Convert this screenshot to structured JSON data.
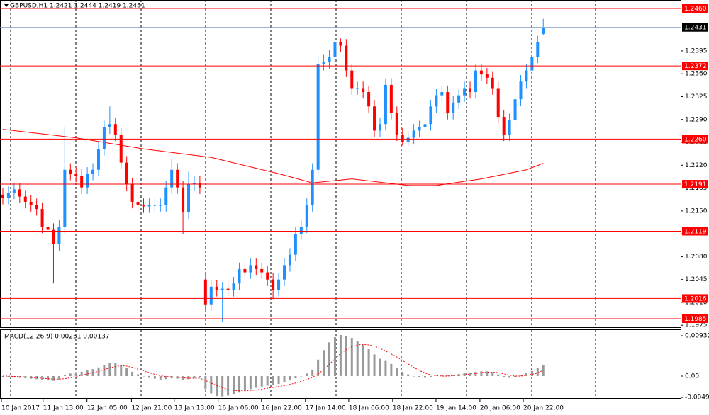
{
  "chart_data": {
    "type": "candlestick",
    "title": "GBPUSD,H1  1.2421 1.2444 1.2419 1.2431",
    "open": [
      1.2175,
      1.217,
      1.2178,
      1.2183,
      1.2172,
      1.2164,
      1.2159,
      1.2153,
      1.2126,
      1.2121,
      1.2099,
      1.2126,
      1.2213,
      1.2207,
      1.2204,
      1.2186,
      1.2207,
      1.2213,
      1.2245,
      1.2278,
      1.2283,
      1.2267,
      1.2224,
      1.2191,
      1.2164,
      1.2159,
      1.2157,
      1.2159,
      1.2159,
      1.2159,
      1.2186,
      1.2213,
      1.2186,
      1.2148,
      1.2191,
      1.2193,
      1.2045,
      1.2007,
      1.2034,
      1.2029,
      1.2031,
      1.2029,
      1.2039,
      1.2061,
      1.2056,
      1.2067,
      1.2061,
      1.2056,
      1.2045,
      1.2029,
      1.2045,
      1.2067,
      1.2083,
      1.2115,
      1.2126,
      1.2159,
      1.2213,
      1.2375,
      1.2378,
      1.2386,
      1.2408,
      1.2403,
      1.2365,
      1.2338,
      1.2338,
      1.2332,
      1.231,
      1.2273,
      1.2283,
      1.2343,
      1.23,
      1.2267,
      1.2256,
      1.2262,
      1.2273,
      1.2278,
      1.2283,
      1.231,
      1.2327,
      1.2332,
      1.23,
      1.2316,
      1.2327,
      1.2338,
      1.2332,
      1.2365,
      1.2359,
      1.2354,
      1.2338,
      1.2294,
      1.2267,
      1.2289,
      1.2321,
      1.2348,
      1.2365,
      1.2386,
      1.2421
    ],
    "high": [
      1.2185,
      1.2188,
      1.2193,
      1.2193,
      1.2182,
      1.2174,
      1.2169,
      1.2163,
      1.2136,
      1.2131,
      1.2136,
      1.2278,
      1.2223,
      1.2217,
      1.2214,
      1.2217,
      1.2223,
      1.2255,
      1.2288,
      1.231,
      1.2293,
      1.2277,
      1.2234,
      1.2201,
      1.2174,
      1.2169,
      1.2169,
      1.2169,
      1.2169,
      1.2196,
      1.223,
      1.2223,
      1.2196,
      1.221,
      1.2203,
      1.2203,
      1.2055,
      1.2044,
      1.2044,
      1.2041,
      1.2041,
      1.2049,
      1.2071,
      1.2071,
      1.2077,
      1.2077,
      1.2071,
      1.2066,
      1.2055,
      1.2055,
      1.2077,
      1.2093,
      1.2125,
      1.2136,
      1.2169,
      1.2223,
      1.2385,
      1.239,
      1.2396,
      1.2414,
      1.2414,
      1.2413,
      1.2375,
      1.2348,
      1.2348,
      1.2342,
      1.232,
      1.2293,
      1.2353,
      1.2353,
      1.231,
      1.2277,
      1.2272,
      1.2283,
      1.2288,
      1.2293,
      1.232,
      1.2337,
      1.2342,
      1.2342,
      1.2326,
      1.2337,
      1.2348,
      1.2348,
      1.2375,
      1.2375,
      1.2369,
      1.2364,
      1.2348,
      1.2304,
      1.2299,
      1.2331,
      1.2358,
      1.2375,
      1.2396,
      1.2418,
      1.2444
    ],
    "low": [
      1.216,
      1.216,
      1.2168,
      1.2162,
      1.2154,
      1.2149,
      1.2143,
      1.2116,
      1.2111,
      1.2039,
      1.2089,
      1.2116,
      1.2197,
      1.2194,
      1.2176,
      1.2176,
      1.2197,
      1.2203,
      1.2235,
      1.2268,
      1.2257,
      1.2214,
      1.2181,
      1.2154,
      1.2149,
      1.2147,
      1.2147,
      1.2149,
      1.2149,
      1.2149,
      1.2176,
      1.2176,
      1.2115,
      1.2138,
      1.2181,
      1.2176,
      1.1995,
      1.1997,
      1.2019,
      1.198,
      1.2019,
      1.2019,
      1.2029,
      1.2046,
      1.2046,
      1.2051,
      1.2046,
      1.2035,
      1.2015,
      1.2019,
      1.2035,
      1.2057,
      1.2073,
      1.2105,
      1.2116,
      1.2149,
      1.2203,
      1.2365,
      1.2368,
      1.2376,
      1.2393,
      1.2355,
      1.2328,
      1.2328,
      1.2322,
      1.23,
      1.2263,
      1.2263,
      1.2273,
      1.229,
      1.2257,
      1.225,
      1.225,
      1.2252,
      1.2263,
      1.226,
      1.2273,
      1.23,
      1.2317,
      1.229,
      1.229,
      1.2306,
      1.2317,
      1.2322,
      1.2322,
      1.2349,
      1.2344,
      1.2328,
      1.2284,
      1.2257,
      1.2257,
      1.2279,
      1.2311,
      1.2338,
      1.2355,
      1.2376,
      1.2419
    ],
    "close": [
      1.217,
      1.2178,
      1.2183,
      1.2172,
      1.2164,
      1.2159,
      1.2153,
      1.2126,
      1.2121,
      1.2099,
      1.2126,
      1.2213,
      1.2207,
      1.2204,
      1.2186,
      1.2207,
      1.2213,
      1.2245,
      1.2278,
      1.2283,
      1.2267,
      1.2224,
      1.2191,
      1.2164,
      1.2159,
      1.2157,
      1.2159,
      1.2159,
      1.2159,
      1.2186,
      1.2213,
      1.2186,
      1.2148,
      1.2191,
      1.2193,
      1.2186,
      1.2007,
      1.2034,
      1.2029,
      1.2031,
      1.2029,
      1.2039,
      1.2061,
      1.2056,
      1.2067,
      1.2061,
      1.2056,
      1.2045,
      1.2029,
      1.2045,
      1.2067,
      1.2083,
      1.2115,
      1.2126,
      1.2159,
      1.2213,
      1.2375,
      1.2378,
      1.2386,
      1.2408,
      1.2403,
      1.2365,
      1.2338,
      1.2338,
      1.2332,
      1.231,
      1.2273,
      1.2283,
      1.2343,
      1.23,
      1.2267,
      1.2256,
      1.2262,
      1.2273,
      1.2278,
      1.2283,
      1.231,
      1.2327,
      1.2332,
      1.23,
      1.2316,
      1.2327,
      1.2338,
      1.2332,
      1.2365,
      1.2359,
      1.2354,
      1.2338,
      1.2294,
      1.2267,
      1.2289,
      1.2321,
      1.2348,
      1.2365,
      1.2386,
      1.2408,
      1.2431
    ],
    "up_color": "#1e90ff",
    "down_color": "#ff0000",
    "ma": {
      "color": "#ff0000",
      "x": [
        0,
        13,
        25,
        37,
        49,
        55,
        62,
        72,
        77,
        85,
        93,
        96
      ],
      "values": [
        1.2275,
        1.2262,
        1.2245,
        1.2232,
        1.2207,
        1.2193,
        1.2199,
        1.2189,
        1.2189,
        1.2199,
        1.2213,
        1.2223
      ]
    },
    "ylim": [
      1.1972,
      1.2473
    ],
    "yticks": [
      {
        "value": 1.2395,
        "label": "1.2395"
      },
      {
        "value": 1.236,
        "label": "1.2360"
      },
      {
        "value": 1.2325,
        "label": "1.2325"
      },
      {
        "value": 1.229,
        "label": "1.2290"
      },
      {
        "value": 1.2255,
        "label": "1.2255"
      },
      {
        "value": 1.222,
        "label": "1.2220"
      },
      {
        "value": 1.2185,
        "label": "1.2185"
      },
      {
        "value": 1.215,
        "label": "1.2150"
      },
      {
        "value": 1.2115,
        "label": "1.2115"
      },
      {
        "value": 1.208,
        "label": "1.2080"
      },
      {
        "value": 1.2045,
        "label": "1.2045"
      },
      {
        "value": 1.201,
        "label": "1.2010"
      },
      {
        "value": 1.1975,
        "label": "1.1975"
      }
    ],
    "levels": {
      "color": "#ff0000",
      "values": [
        {
          "value": 1.246,
          "label": "1.2460"
        },
        {
          "value": 1.2372,
          "label": "1.2372"
        },
        {
          "value": 1.226,
          "label": "1.2260"
        },
        {
          "value": 1.2191,
          "label": "1.2191"
        },
        {
          "value": 1.2119,
          "label": "1.2119"
        },
        {
          "value": 1.2016,
          "label": "1.2016"
        },
        {
          "value": 1.1985,
          "label": "1.1985"
        }
      ]
    },
    "current_price": {
      "value": 1.2431,
      "label": "1.2431"
    },
    "xticks": [
      {
        "value": 0,
        "label": "10 Jan 2017"
      },
      {
        "value": 7.4,
        "label": "11 Jan 13:00"
      },
      {
        "value": 15.2,
        "label": "12 Jan 05:00"
      },
      {
        "value": 23.1,
        "label": "12 Jan 21:00"
      },
      {
        "value": 30.7,
        "label": "13 Jan 13:00"
      },
      {
        "value": 38.5,
        "label": "16 Jan 06:00"
      },
      {
        "value": 46.2,
        "label": "16 Jan 22:00"
      },
      {
        "value": 54,
        "label": "17 Jan 14:00"
      },
      {
        "value": 61.7,
        "label": "18 Jan 06:00"
      },
      {
        "value": 69.5,
        "label": "18 Jan 22:00"
      },
      {
        "value": 77.2,
        "label": "19 Jan 14:00"
      },
      {
        "value": 85,
        "label": "20 Jan 06:00"
      },
      {
        "value": 92.7,
        "label": "20 Jan 22:00"
      }
    ],
    "macd": {
      "title": "MACD(12,26,9) 0.00251 0.00137",
      "hist_color": "#999999",
      "signal_color": "#ff0000",
      "hist": [
        -0.0002,
        -0.0003,
        -0.0003,
        -0.0004,
        -0.0005,
        -0.0006,
        -0.0007,
        -0.0009,
        -0.001,
        -0.0011,
        -0.0008,
        0.0002,
        0.0006,
        0.0009,
        0.001,
        0.0013,
        0.0016,
        0.002,
        0.0026,
        0.0031,
        0.0031,
        0.0026,
        0.0018,
        0.001,
        0.0004,
        0,
        -0.0004,
        -0.0006,
        -0.0008,
        -0.0007,
        -0.0005,
        -0.0006,
        -0.0009,
        -0.0007,
        -0.0005,
        -0.0004,
        -0.003,
        -0.004,
        -0.0046,
        -0.0047,
        -0.0045,
        -0.0042,
        -0.0038,
        -0.0034,
        -0.003,
        -0.0027,
        -0.0024,
        -0.0022,
        -0.0021,
        -0.0018,
        -0.0014,
        -0.001,
        -0.0005,
        0,
        0.0006,
        0.0015,
        0.0038,
        0.006,
        0.0078,
        0.009,
        0.0095,
        0.0093,
        0.0088,
        0.008,
        0.0072,
        0.0062,
        0.005,
        0.004,
        0.0035,
        0.0028,
        0.0018,
        0.001,
        0.0004,
        0,
        -0.0003,
        -0.0004,
        -0.0002,
        0.0001,
        0.0003,
        0.0002,
        0.0003,
        0.0005,
        0.0007,
        0.0008,
        0.001,
        0.0011,
        0.0011,
        0.0009,
        0.0004,
        -0.0002,
        -0.0004,
        -0.0002,
        0.0003,
        0.0007,
        0.0012,
        0.0018,
        0.00251
      ],
      "signal": [
        0,
        0,
        -0.0001,
        -0.0001,
        -0.0002,
        -0.0003,
        -0.0004,
        -0.0005,
        -0.0006,
        -0.0007,
        -0.0007,
        -0.0006,
        -0.0004,
        -0.0001,
        0.0002,
        0.0005,
        0.0008,
        0.0011,
        0.0015,
        0.0019,
        0.0022,
        0.0024,
        0.0023,
        0.002,
        0.0016,
        0.0012,
        0.0008,
        0.0004,
        0.0001,
        -0.0001,
        -0.0002,
        -0.0003,
        -0.0004,
        -0.0005,
        -0.0005,
        -0.0005,
        -0.001,
        -0.0016,
        -0.0022,
        -0.0027,
        -0.0031,
        -0.0033,
        -0.0034,
        -0.0034,
        -0.0033,
        -0.0032,
        -0.003,
        -0.0028,
        -0.0026,
        -0.0024,
        -0.0022,
        -0.0019,
        -0.0016,
        -0.0012,
        -0.0008,
        -0.0003,
        0.0005,
        0.0015,
        0.0027,
        0.004,
        0.0052,
        0.0061,
        0.0068,
        0.0072,
        0.0073,
        0.0072,
        0.0069,
        0.0064,
        0.0058,
        0.0051,
        0.0044,
        0.0036,
        0.0028,
        0.002,
        0.0013,
        0.0007,
        0.0003,
        0.0001,
        0,
        0,
        0.0001,
        0.0002,
        0.0003,
        0.0005,
        0.0006,
        0.0008,
        0.0009,
        0.0009,
        0.0008,
        0.0005,
        0.0002,
        0,
        0,
        0.0002,
        0.0004,
        0.0007,
        0.00137
      ],
      "ylim": [
        -0.00507,
        0.01063
      ],
      "yticks": [
        0.00932,
        {
          "value": 0,
          "label": "0.00"
        },
        -0.00492
      ]
    }
  }
}
